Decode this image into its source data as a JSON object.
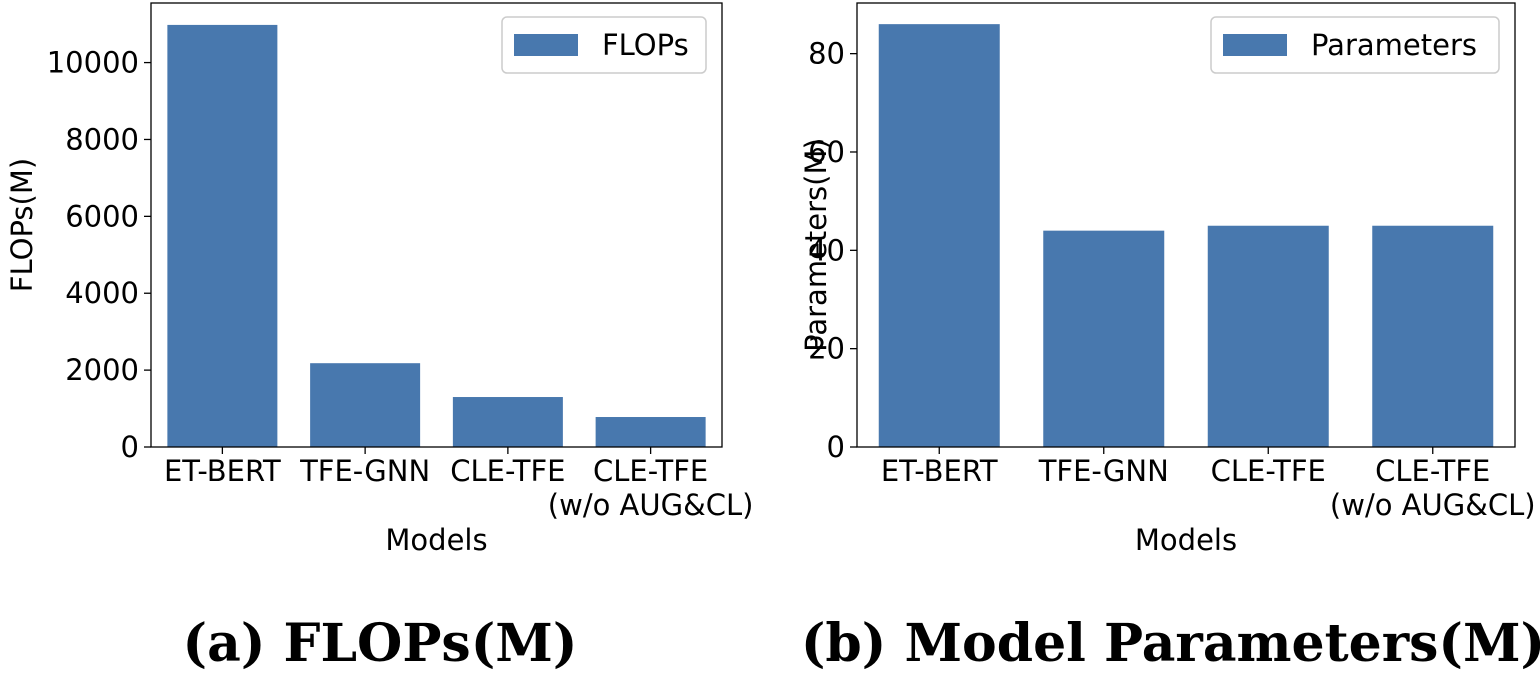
{
  "chart_data": [
    {
      "type": "bar",
      "categories": [
        [
          "ET-BERT"
        ],
        [
          "TFE-GNN"
        ],
        [
          "CLE-TFE"
        ],
        [
          "CLE-TFE",
          "(w/o AUG&CL)"
        ]
      ],
      "values": [
        10980,
        2180,
        1300,
        780
      ],
      "ylabel": "FLOPs(M)",
      "xlabel": "Models",
      "ylim": [
        0,
        11550
      ],
      "yticks": [
        0,
        2000,
        4000,
        6000,
        8000,
        10000
      ],
      "legend": [
        "FLOPs"
      ],
      "legend_position": "top-right",
      "caption": "(a) FLOPs(M)",
      "color": "#4878ae",
      "grid": false
    },
    {
      "type": "bar",
      "categories": [
        [
          "ET-BERT"
        ],
        [
          "TFE-GNN"
        ],
        [
          "CLE-TFE"
        ],
        [
          "CLE-TFE",
          "(w/o AUG&CL)"
        ]
      ],
      "values": [
        86,
        44,
        45,
        45
      ],
      "ylabel": "Parameters(M)",
      "xlabel": "Models",
      "ylim": [
        0,
        90.3
      ],
      "yticks": [
        0,
        20,
        40,
        60,
        80
      ],
      "legend": [
        "Parameters"
      ],
      "legend_position": "top-right",
      "caption": "(b) Model Parameters(M)",
      "color": "#4878ae",
      "grid": false
    }
  ]
}
